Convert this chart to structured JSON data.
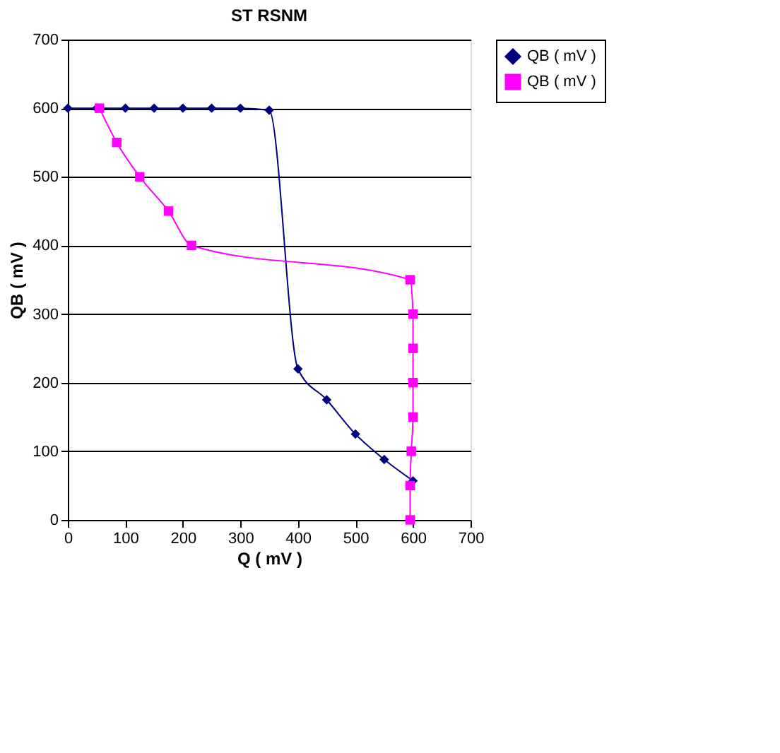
{
  "chart_data": {
    "type": "line",
    "title": "ST RSNM",
    "xlabel": "Q ( mV )",
    "ylabel": "QB ( mV )",
    "xlim": [
      0,
      700
    ],
    "xticks": [
      0,
      100,
      200,
      300,
      400,
      500,
      600,
      700
    ],
    "ylim": [
      0,
      700
    ],
    "yticks": [
      0,
      100,
      200,
      300,
      400,
      500,
      600,
      700
    ],
    "grid": "y",
    "legend": "right",
    "series": [
      {
        "name": "QB ( mV )",
        "color": "#000080",
        "marker": "diamond",
        "x": [
          0,
          50,
          100,
          150,
          200,
          250,
          300,
          350,
          400,
          450,
          500,
          550,
          600
        ],
        "values": [
          600,
          600,
          600,
          600,
          600,
          600,
          600,
          597,
          220,
          175,
          125,
          88,
          57
        ]
      },
      {
        "name": "QB ( mV )",
        "color": "#ff00ff",
        "marker": "square",
        "x": [
          55,
          85,
          125,
          175,
          215,
          595,
          600,
          600,
          600,
          600,
          597,
          595,
          595
        ],
        "values": [
          600,
          550,
          500,
          450,
          400,
          350,
          300,
          250,
          200,
          150,
          100,
          50,
          0
        ]
      }
    ]
  }
}
